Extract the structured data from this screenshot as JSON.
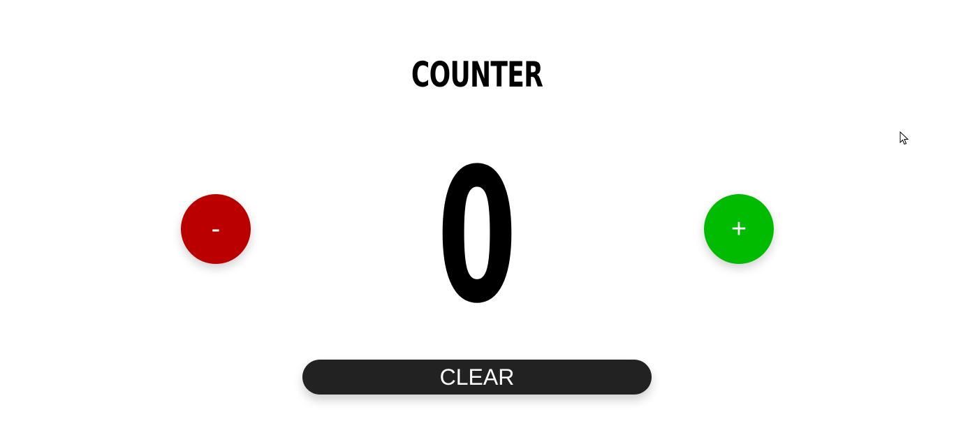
{
  "title": "COUNTER",
  "counter": {
    "value": "0"
  },
  "buttons": {
    "decrement_label": "-",
    "increment_label": "+",
    "clear_label": "CLEAR"
  },
  "colors": {
    "decrement": "#bb0000",
    "increment": "#00bb00",
    "clear": "#222222"
  },
  "icons": {
    "cursor": "mouse-pointer-icon"
  }
}
